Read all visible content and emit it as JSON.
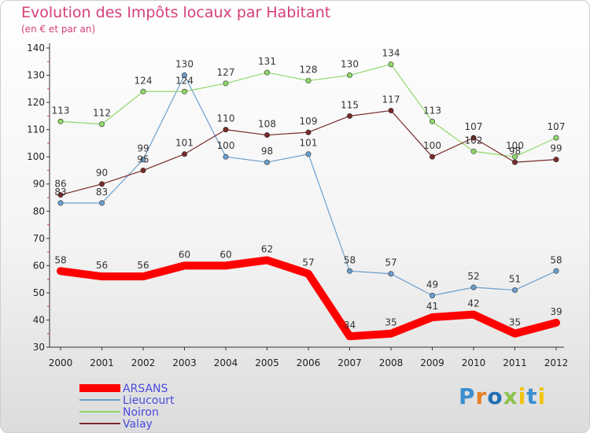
{
  "chart_data": {
    "type": "line",
    "title": "Evolution des Impôts locaux par Habitant",
    "subtitle": "(en € et par an)",
    "x": [
      "2000",
      "2001",
      "2002",
      "2003",
      "2004",
      "2005",
      "2006",
      "2007",
      "2008",
      "2009",
      "2010",
      "2011",
      "2012"
    ],
    "ylim": [
      30,
      140
    ],
    "yticks": [
      30,
      40,
      50,
      60,
      70,
      80,
      90,
      100,
      110,
      120,
      130,
      140
    ],
    "grid": false,
    "legend_position": "bottom-left",
    "series": [
      {
        "name": "ARSANS",
        "color": "#ff0000",
        "values": [
          58,
          56,
          56,
          60,
          60,
          62,
          57,
          34,
          35,
          41,
          42,
          35,
          39
        ]
      },
      {
        "name": "Lieucourt",
        "color": "#6b9fce",
        "values": [
          83,
          83,
          99,
          130,
          100,
          98,
          101,
          58,
          57,
          49,
          52,
          51,
          58
        ]
      },
      {
        "name": "Noiron",
        "color": "#8fd86b",
        "values": [
          113,
          112,
          124,
          124,
          127,
          131,
          128,
          130,
          134,
          113,
          102,
          100,
          107
        ]
      },
      {
        "name": "Valay",
        "color": "#7a2a2a",
        "values": [
          86,
          90,
          95,
          101,
          110,
          108,
          109,
          115,
          117,
          100,
          107,
          98,
          99
        ]
      }
    ]
  },
  "logo": {
    "text": "Proxiti",
    "letters": [
      "P",
      "r",
      "o",
      "x",
      "i",
      "t",
      "i"
    ]
  },
  "colors": {
    "title": "#d4407a",
    "legend_text": "#4a4adf",
    "axis": "#333333"
  }
}
